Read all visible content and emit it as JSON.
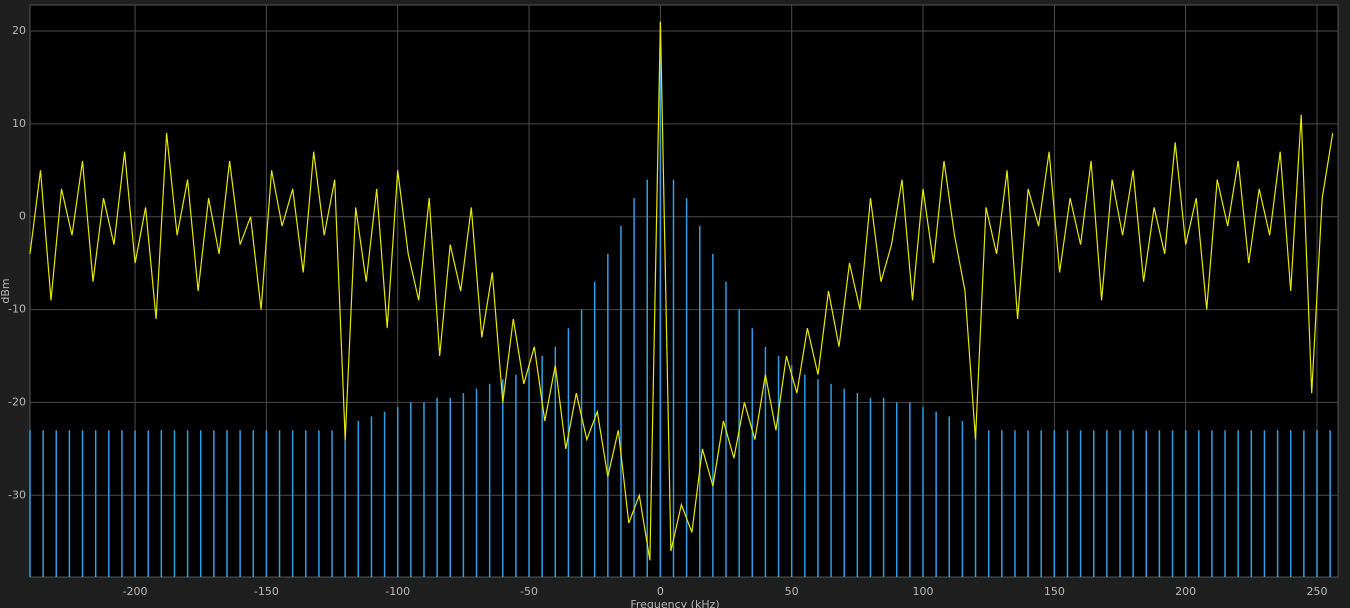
{
  "chart_data": {
    "type": "line",
    "xlabel": "Frequency (kHz)",
    "ylabel": "dBm",
    "xlim": [
      -240,
      258
    ],
    "ylim": [
      -38.8,
      22.8
    ],
    "xticks": [
      -200,
      -150,
      -100,
      -50,
      0,
      50,
      100,
      150,
      200,
      250
    ],
    "yticks": [
      -30,
      -20,
      -10,
      0,
      10,
      20
    ],
    "grid": true,
    "series": [
      {
        "color": "#e8e800",
        "style": "line",
        "x": [
          -240,
          -236,
          -232,
          -228,
          -224,
          -220,
          -216,
          -212,
          -208,
          -204,
          -200,
          -196,
          -192,
          -188,
          -184,
          -180,
          -176,
          -172,
          -168,
          -164,
          -160,
          -156,
          -152,
          -148,
          -144,
          -140,
          -136,
          -132,
          -128,
          -124,
          -120,
          -116,
          -112,
          -108,
          -104,
          -100,
          -96,
          -92,
          -88,
          -84,
          -80,
          -76,
          -72,
          -68,
          -64,
          -60,
          -56,
          -52,
          -48,
          -44,
          -40,
          -36,
          -32,
          -28,
          -24,
          -20,
          -16,
          -12,
          -8,
          -4,
          0,
          4,
          8,
          12,
          16,
          20,
          24,
          28,
          32,
          36,
          40,
          44,
          48,
          52,
          56,
          60,
          64,
          68,
          72,
          76,
          80,
          84,
          88,
          92,
          96,
          100,
          104,
          108,
          112,
          116,
          120,
          124,
          128,
          132,
          136,
          140,
          144,
          148,
          152,
          156,
          160,
          164,
          168,
          172,
          176,
          180,
          184,
          188,
          192,
          196,
          200,
          204,
          208,
          212,
          216,
          220,
          224,
          228,
          232,
          236,
          240,
          244,
          248,
          252,
          256
        ],
        "values": [
          -4,
          5,
          -9,
          3,
          -2,
          6,
          -7,
          2,
          -3,
          7,
          -5,
          1,
          -11,
          9,
          -2,
          4,
          -8,
          2,
          -4,
          6,
          -3,
          0,
          -10,
          5,
          -1,
          3,
          -6,
          7,
          -2,
          4,
          -24,
          1,
          -7,
          3,
          -12,
          5,
          -4,
          -9,
          2,
          -15,
          -3,
          -8,
          1,
          -13,
          -6,
          -20,
          -11,
          -18,
          -14,
          -22,
          -16,
          -25,
          -19,
          -24,
          -21,
          -28,
          -23,
          -33,
          -30,
          -37,
          21,
          -36,
          -31,
          -34,
          -25,
          -29,
          -22,
          -26,
          -20,
          -24,
          -17,
          -23,
          -15,
          -19,
          -12,
          -17,
          -8,
          -14,
          -5,
          -10,
          2,
          -7,
          -3,
          4,
          -9,
          3,
          -5,
          6,
          -2,
          -8,
          -24,
          1,
          -4,
          5,
          -11,
          3,
          -1,
          7,
          -6,
          2,
          -3,
          6,
          -9,
          4,
          -2,
          5,
          -7,
          1,
          -4,
          8,
          -3,
          2,
          -10,
          4,
          -1,
          6,
          -5,
          3,
          -2,
          7,
          -8,
          11,
          -19,
          2,
          9
        ]
      },
      {
        "color": "#2e9fe6",
        "style": "stem",
        "x": [
          -240,
          -235,
          -230,
          -225,
          -220,
          -215,
          -210,
          -205,
          -200,
          -195,
          -190,
          -185,
          -180,
          -175,
          -170,
          -165,
          -160,
          -155,
          -150,
          -145,
          -140,
          -135,
          -130,
          -125,
          -120,
          -115,
          -110,
          -105,
          -100,
          -95,
          -90,
          -85,
          -80,
          -75,
          -70,
          -65,
          -60,
          -55,
          -50,
          -45,
          -40,
          -35,
          -30,
          -25,
          -20,
          -15,
          -10,
          -5,
          0,
          5,
          10,
          15,
          20,
          25,
          30,
          35,
          40,
          45,
          50,
          55,
          60,
          65,
          70,
          75,
          80,
          85,
          90,
          95,
          100,
          105,
          110,
          115,
          120,
          125,
          130,
          135,
          140,
          145,
          150,
          155,
          160,
          165,
          170,
          175,
          180,
          185,
          190,
          195,
          200,
          205,
          210,
          215,
          220,
          225,
          230,
          235,
          240,
          245,
          250,
          255
        ],
        "values": [
          -23,
          -23,
          -23,
          -23,
          -23,
          -23,
          -23,
          -23,
          -23,
          -23,
          -23,
          -23,
          -23,
          -23,
          -23,
          -23,
          -23,
          -23,
          -23,
          -23,
          -23,
          -23,
          -23,
          -23,
          -22.5,
          -22,
          -21.5,
          -21,
          -20.5,
          -20,
          -20,
          -19.5,
          -19.5,
          -19,
          -18.5,
          -18,
          -17.5,
          -17,
          -16,
          -15,
          -14,
          -12,
          -10,
          -7,
          -4,
          -1,
          2,
          4,
          21,
          4,
          2,
          -1,
          -4,
          -7,
          -10,
          -12,
          -14,
          -15,
          -16,
          -17,
          -17.5,
          -18,
          -18.5,
          -19,
          -19.5,
          -19.5,
          -20,
          -20,
          -20.5,
          -21,
          -21.5,
          -22,
          -22.5,
          -23,
          -23,
          -23,
          -23,
          -23,
          -23,
          -23,
          -23,
          -23,
          -23,
          -23,
          -23,
          -23,
          -23,
          -23,
          -23,
          -23,
          -23,
          -23,
          -23,
          -23,
          -23,
          -23,
          -23,
          -23,
          -23,
          -23
        ]
      }
    ]
  }
}
